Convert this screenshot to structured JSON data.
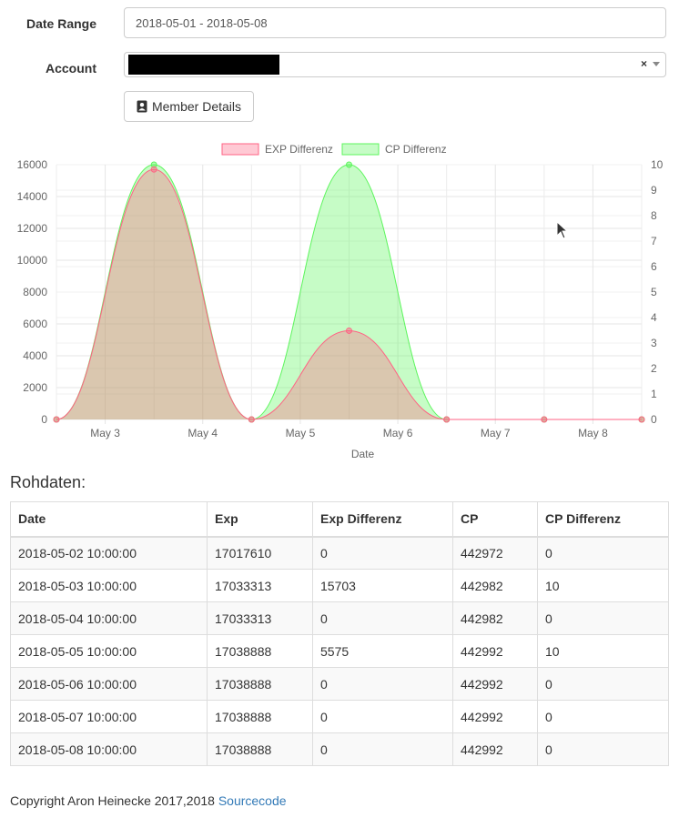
{
  "form": {
    "date_range_label": "Date Range",
    "date_range_value": "2018-05-01 - 2018-05-08",
    "account_label": "Account",
    "account_value": "",
    "clear_symbol": "×",
    "member_details_label": "Member Details"
  },
  "chart_data": {
    "type": "area",
    "title": "",
    "xlabel": "Date",
    "x_ticks": [
      "May 3",
      "May 4",
      "May 5",
      "May 6",
      "May 7",
      "May 8"
    ],
    "x": [
      "2018-05-02 10:00",
      "2018-05-03 10:00",
      "2018-05-04 10:00",
      "2018-05-05 10:00",
      "2018-05-06 10:00",
      "2018-05-07 10:00",
      "2018-05-08 10:00"
    ],
    "y_left_ticks": [
      "0",
      "2000",
      "4000",
      "6000",
      "8000",
      "10000",
      "12000",
      "14000",
      "16000"
    ],
    "y_right_ticks": [
      "0",
      "1",
      "2",
      "3",
      "4",
      "5",
      "6",
      "7",
      "8",
      "9",
      "10"
    ],
    "ylim_left": [
      0,
      16000
    ],
    "ylim_right": [
      0,
      10
    ],
    "grid": true,
    "legend_position": "top",
    "series": [
      {
        "name": "EXP Differenz",
        "axis": "left",
        "values": [
          0,
          15703,
          0,
          5575,
          0,
          0,
          0
        ],
        "color": "#ff6384"
      },
      {
        "name": "CP Differenz",
        "axis": "right",
        "values": [
          0,
          10,
          0,
          10,
          0,
          0,
          0
        ],
        "color": "#5cf55c"
      }
    ]
  },
  "table": {
    "heading": "Rohdaten:",
    "columns": [
      "Date",
      "Exp",
      "Exp Differenz",
      "CP",
      "CP Differenz"
    ],
    "rows": [
      [
        "2018-05-02 10:00:00",
        "17017610",
        "0",
        "442972",
        "0"
      ],
      [
        "2018-05-03 10:00:00",
        "17033313",
        "15703",
        "442982",
        "10"
      ],
      [
        "2018-05-04 10:00:00",
        "17033313",
        "0",
        "442982",
        "0"
      ],
      [
        "2018-05-05 10:00:00",
        "17038888",
        "5575",
        "442992",
        "10"
      ],
      [
        "2018-05-06 10:00:00",
        "17038888",
        "0",
        "442992",
        "0"
      ],
      [
        "2018-05-07 10:00:00",
        "17038888",
        "0",
        "442992",
        "0"
      ],
      [
        "2018-05-08 10:00:00",
        "17038888",
        "0",
        "442992",
        "0"
      ]
    ]
  },
  "footer": {
    "text": "Copyright Aron Heinecke 2017,2018",
    "link_label": "Sourcecode"
  }
}
